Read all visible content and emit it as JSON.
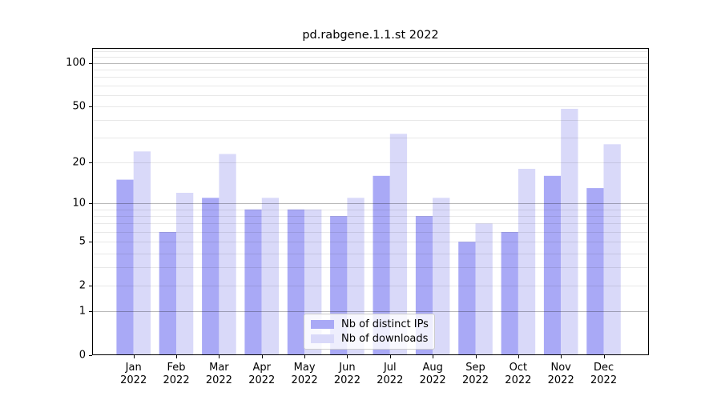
{
  "chart_data": {
    "type": "bar",
    "title": "pd.rabgene.1.1.st 2022",
    "categories": [
      "Jan",
      "Feb",
      "Mar",
      "Apr",
      "May",
      "Jun",
      "Jul",
      "Aug",
      "Sep",
      "Oct",
      "Nov",
      "Dec"
    ],
    "x_tick_year": "2022",
    "series": [
      {
        "name": "Nb of distinct IPs",
        "color": "#a9a9f6",
        "values": [
          15,
          6,
          11,
          9,
          9,
          8,
          16,
          8,
          5,
          6,
          16,
          13
        ]
      },
      {
        "name": "Nb of downloads",
        "color": "#d9d9f9",
        "values": [
          24,
          12,
          23,
          11,
          9,
          11,
          32,
          11,
          7,
          18,
          48,
          27
        ]
      }
    ],
    "xlabel": "",
    "ylabel": "",
    "yscale": "log1p",
    "ylim": [
      0,
      127
    ],
    "yticks": [
      0,
      1,
      2,
      5,
      10,
      20,
      50,
      100
    ],
    "ytick_labels": [
      "0",
      "1",
      "2",
      "5",
      "10",
      "20",
      "50",
      "100"
    ],
    "grid": {
      "on": true,
      "major": [
        1,
        10,
        100
      ],
      "minor": [
        2,
        3,
        4,
        5,
        6,
        7,
        8,
        9,
        20,
        30,
        40,
        50,
        60,
        70,
        80,
        90,
        110,
        120
      ],
      "major_color": "rgba(0,0,0,0.28)",
      "minor_color": "rgba(0,0,0,0.09)"
    },
    "legend_position": "lower center",
    "background": "#ffffff",
    "spine_color": "#000000"
  }
}
